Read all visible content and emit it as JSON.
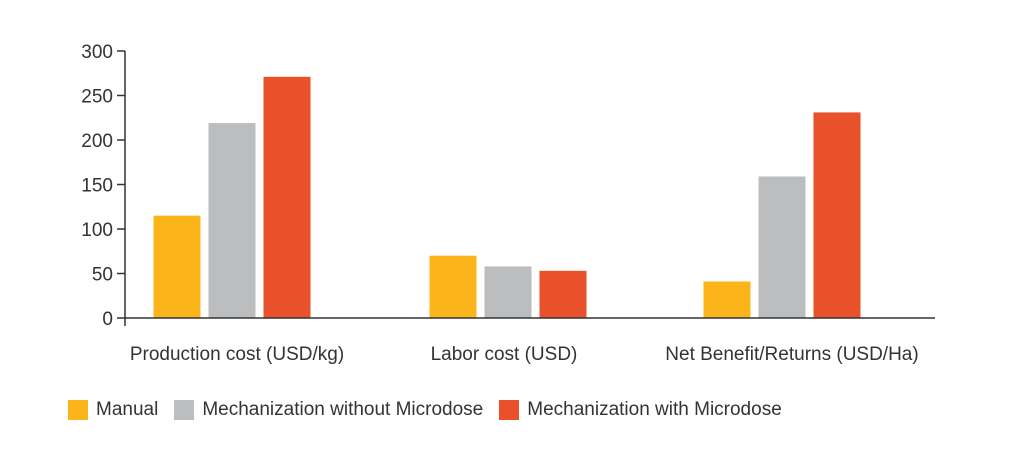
{
  "chart_data": {
    "type": "bar",
    "title": "",
    "xlabel": "",
    "ylabel": "",
    "categories": [
      "Production cost (USD/kg)",
      "Labor cost (USD)",
      "Net Benefit/Returns (USD/Ha)"
    ],
    "series": [
      {
        "name": "Manual",
        "color": "#FBB41A",
        "values": [
          115,
          70,
          41
        ]
      },
      {
        "name": "Mechanization without Microdose",
        "color": "#BCBDBF",
        "values": [
          219,
          58,
          159
        ]
      },
      {
        "name": "Mechanization with Microdose",
        "color": "#E8512A",
        "values": [
          271,
          53,
          231
        ]
      }
    ],
    "ylim": [
      0,
      300
    ],
    "yticks": [
      0,
      50,
      100,
      150,
      200,
      250,
      300
    ],
    "grid": false,
    "legend_position": "bottom"
  }
}
